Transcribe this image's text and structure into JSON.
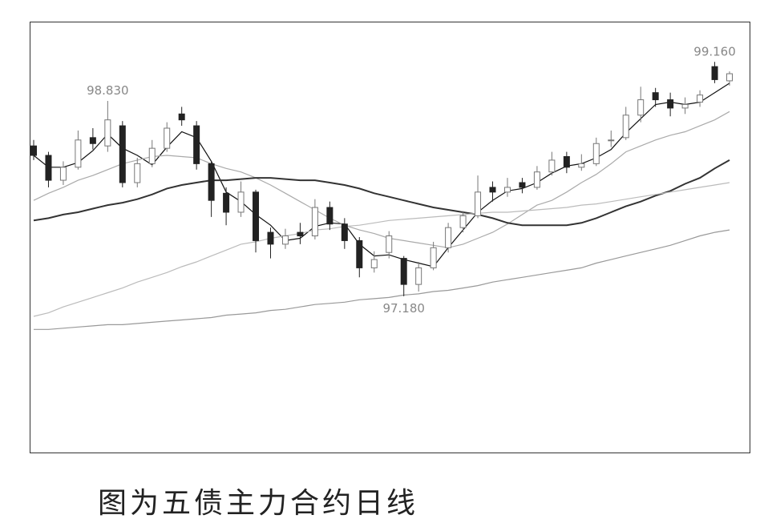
{
  "chart_data": {
    "type": "candlestick",
    "ylim": [
      95.86,
      99.5
    ],
    "open": [
      98.45,
      98.37,
      98.16,
      98.27,
      98.52,
      98.45,
      98.62,
      98.14,
      98.3,
      98.43,
      98.72,
      98.62,
      98.3,
      98.05,
      97.89,
      98.06,
      97.72,
      97.62,
      97.72,
      97.69,
      97.93,
      97.79,
      97.65,
      97.42,
      97.55,
      97.5,
      97.28,
      97.42,
      97.59,
      97.76,
      97.86,
      98.1,
      98.06,
      98.14,
      98.1,
      98.23,
      98.36,
      98.27,
      98.3,
      98.5,
      98.52,
      98.71,
      98.9,
      98.84,
      98.77,
      98.82,
      99.12,
      99.0
    ],
    "high": [
      98.5,
      98.4,
      98.32,
      98.58,
      98.6,
      98.83,
      98.66,
      98.35,
      98.5,
      98.65,
      98.78,
      98.66,
      98.32,
      98.1,
      98.15,
      98.08,
      97.76,
      97.75,
      97.8,
      98.0,
      97.98,
      97.84,
      97.68,
      97.56,
      97.73,
      97.52,
      97.47,
      97.64,
      97.8,
      97.9,
      98.2,
      98.15,
      98.18,
      98.18,
      98.28,
      98.4,
      98.4,
      98.38,
      98.52,
      98.58,
      98.78,
      98.95,
      98.94,
      98.9,
      98.86,
      98.92,
      99.16,
      99.08
    ],
    "low": [
      98.33,
      98.1,
      98.12,
      98.25,
      98.42,
      98.4,
      98.1,
      98.1,
      98.27,
      98.4,
      98.62,
      98.25,
      97.85,
      97.78,
      97.85,
      97.55,
      97.5,
      97.58,
      97.62,
      97.66,
      97.74,
      97.58,
      97.34,
      97.38,
      97.5,
      97.18,
      97.22,
      97.4,
      97.55,
      97.72,
      97.84,
      97.98,
      98.02,
      98.05,
      98.08,
      98.2,
      98.22,
      98.24,
      98.28,
      98.44,
      98.5,
      98.65,
      98.78,
      98.7,
      98.72,
      98.78,
      98.98,
      98.96
    ],
    "close": [
      98.37,
      98.16,
      98.27,
      98.5,
      98.47,
      98.67,
      98.14,
      98.3,
      98.43,
      98.6,
      98.67,
      98.3,
      97.99,
      97.89,
      98.06,
      97.65,
      97.62,
      97.69,
      97.69,
      97.93,
      97.79,
      97.65,
      97.42,
      97.49,
      97.69,
      97.28,
      97.42,
      97.59,
      97.76,
      97.86,
      98.06,
      98.06,
      98.1,
      98.1,
      98.23,
      98.33,
      98.27,
      98.3,
      98.47,
      98.5,
      98.71,
      98.84,
      98.84,
      98.77,
      98.8,
      98.88,
      99.01,
      99.06
    ],
    "up_color": "#ffffff",
    "up_stroke": "#777777",
    "down_color": "#222222",
    "series": [
      {
        "color": "#111111",
        "line_width": 1.2,
        "values": [
          98.37,
          98.27,
          98.27,
          98.31,
          98.41,
          98.55,
          98.43,
          98.37,
          98.29,
          98.44,
          98.57,
          98.52,
          98.32,
          98.06,
          97.98,
          97.87,
          97.78,
          97.65,
          97.67,
          97.77,
          97.8,
          97.79,
          97.62,
          97.52,
          97.53,
          97.49,
          97.46,
          97.43,
          97.59,
          97.74,
          97.89,
          97.99,
          98.07,
          98.09,
          98.14,
          98.22,
          98.28,
          98.3,
          98.35,
          98.42,
          98.56,
          98.68,
          98.8,
          98.82,
          98.8,
          98.82,
          98.9,
          98.98
        ]
      },
      {
        "color": "#aaaaaa",
        "line_width": 1.2,
        "values": [
          97.99,
          98.05,
          98.1,
          98.16,
          98.2,
          98.25,
          98.3,
          98.33,
          98.36,
          98.37,
          98.36,
          98.35,
          98.3,
          98.26,
          98.23,
          98.18,
          98.12,
          98.05,
          97.98,
          97.91,
          97.84,
          97.78,
          97.74,
          97.71,
          97.67,
          97.65,
          97.63,
          97.61,
          97.59,
          97.62,
          97.67,
          97.72,
          97.79,
          97.87,
          97.95,
          97.99,
          98.06,
          98.14,
          98.21,
          98.3,
          98.4,
          98.45,
          98.5,
          98.54,
          98.57,
          98.62,
          98.67,
          98.74
        ]
      },
      {
        "color": "#333333",
        "line_width": 2,
        "values": [
          97.82,
          97.84,
          97.87,
          97.89,
          97.92,
          97.95,
          97.97,
          98.0,
          98.04,
          98.09,
          98.12,
          98.14,
          98.16,
          98.16,
          98.17,
          98.18,
          98.18,
          98.17,
          98.16,
          98.16,
          98.14,
          98.12,
          98.09,
          98.05,
          98.02,
          97.99,
          97.96,
          97.93,
          97.91,
          97.89,
          97.87,
          97.84,
          97.8,
          97.78,
          97.78,
          97.78,
          97.78,
          97.8,
          97.84,
          97.89,
          97.94,
          97.98,
          98.03,
          98.07,
          98.13,
          98.18,
          98.26,
          98.33
        ]
      },
      {
        "color": "#bbbbbb",
        "line_width": 1.2,
        "values": [
          97.01,
          97.04,
          97.09,
          97.13,
          97.17,
          97.21,
          97.25,
          97.3,
          97.34,
          97.38,
          97.43,
          97.47,
          97.52,
          97.57,
          97.62,
          97.64,
          97.67,
          97.69,
          97.71,
          97.74,
          97.75,
          97.77,
          97.78,
          97.8,
          97.82,
          97.83,
          97.84,
          97.85,
          97.86,
          97.87,
          97.88,
          97.89,
          97.89,
          97.9,
          97.91,
          97.92,
          97.93,
          97.95,
          97.96,
          97.98,
          98.0,
          98.02,
          98.04,
          98.06,
          98.08,
          98.1,
          98.12,
          98.14
        ]
      },
      {
        "color": "#999999",
        "line_width": 1.2,
        "values": [
          96.9,
          96.9,
          96.91,
          96.92,
          96.93,
          96.94,
          96.94,
          96.95,
          96.96,
          96.97,
          96.98,
          96.99,
          97.0,
          97.02,
          97.03,
          97.04,
          97.06,
          97.07,
          97.09,
          97.11,
          97.12,
          97.13,
          97.15,
          97.16,
          97.17,
          97.19,
          97.2,
          97.22,
          97.23,
          97.25,
          97.27,
          97.3,
          97.32,
          97.34,
          97.36,
          97.38,
          97.4,
          97.42,
          97.46,
          97.49,
          97.52,
          97.55,
          97.58,
          97.61,
          97.65,
          97.69,
          97.72,
          97.74
        ]
      }
    ],
    "annotations": [
      {
        "label": "98.830",
        "value": 98.83
      },
      {
        "label": "97.180",
        "value": 97.18
      },
      {
        "label": "99.160",
        "value": 99.16
      }
    ],
    "caption": "图为五债主力合约日线"
  }
}
